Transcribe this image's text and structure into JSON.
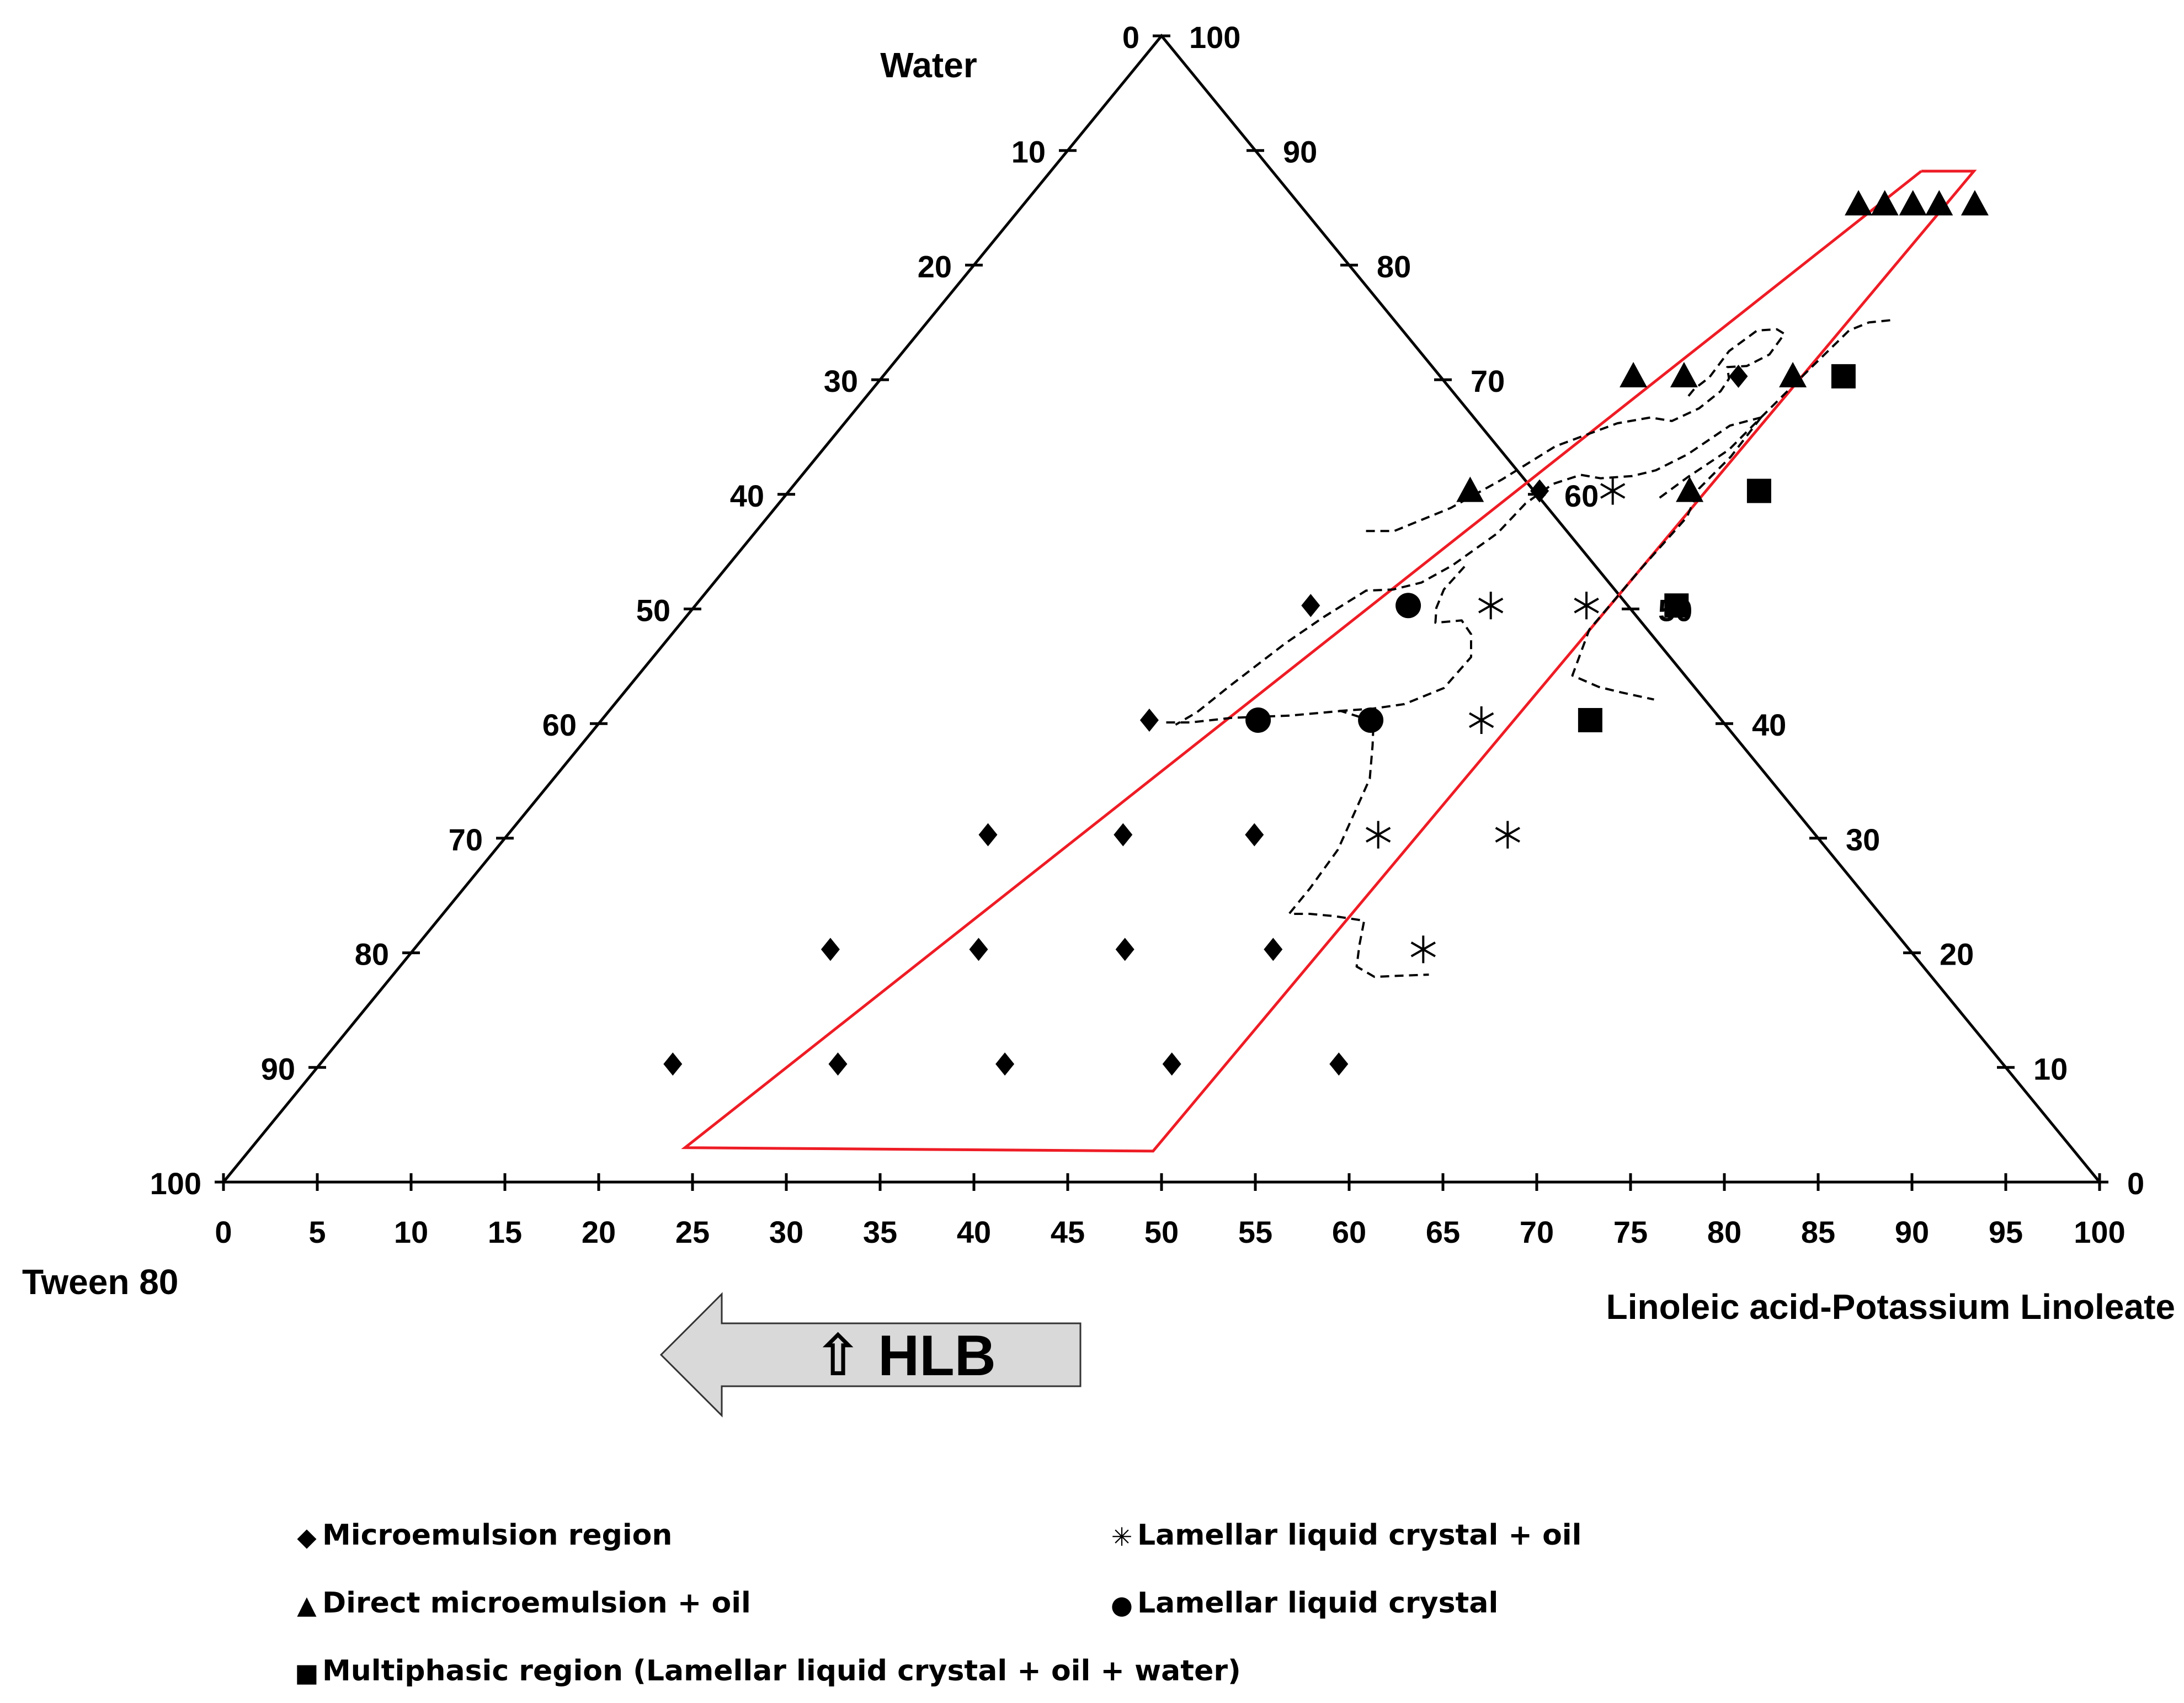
{
  "chart_data": {
    "type": "scatter",
    "subtype": "ternary",
    "apex_labels": {
      "top": "Water",
      "left": "Tween 80",
      "right": "Linoleic acid-Potassium Linoleate"
    },
    "left_axis_ticks": [
      "0",
      "10",
      "20",
      "30",
      "40",
      "50",
      "60",
      "70",
      "80",
      "90",
      "100"
    ],
    "right_axis_ticks": [
      "100",
      "90",
      "80",
      "70",
      "60",
      "50",
      "40",
      "30",
      "20",
      "10",
      "0"
    ],
    "bottom_axis_ticks": [
      "0",
      "5",
      "10",
      "15",
      "20",
      "25",
      "30",
      "35",
      "40",
      "45",
      "50",
      "55",
      "60",
      "65",
      "70",
      "75",
      "80",
      "85",
      "90",
      "95",
      "100"
    ],
    "arrow_label": "⇧  HLB",
    "legend": [
      {
        "key": "microemulsion",
        "symbol": "◆",
        "label": "Microemulsion region"
      },
      {
        "key": "direct",
        "symbol": "▲",
        "label": "Direct microemulsion + oil"
      },
      {
        "key": "multiphasic",
        "symbol": "■",
        "label": "Multiphasic region (Lamellar liquid crystal + oil + water)"
      },
      {
        "key": "lamellar_oil",
        "symbol": "✳",
        "label": "Lamellar liquid crystal + oil"
      },
      {
        "key": "lamellar",
        "symbol": "●",
        "label": "Lamellar liquid crystal"
      }
    ],
    "points": [
      {
        "series": "direct",
        "x": 44.5,
        "water": 14.7
      },
      {
        "series": "direct",
        "x": 45.9,
        "water": 14.7
      },
      {
        "series": "direct",
        "x": 47.4,
        "water": 14.7
      },
      {
        "series": "direct",
        "x": 48.8,
        "water": 14.7
      },
      {
        "series": "direct",
        "x": 50.7,
        "water": 14.7
      },
      {
        "series": "direct",
        "x": 40.0,
        "water": 29.7
      },
      {
        "series": "direct",
        "x": 42.7,
        "water": 29.7
      },
      {
        "series": "microemulsion",
        "x": 45.6,
        "water": 29.7
      },
      {
        "series": "direct",
        "x": 48.5,
        "water": 29.7
      },
      {
        "series": "multiphasic",
        "x": 51.2,
        "water": 29.7
      },
      {
        "series": "direct",
        "x": 36.3,
        "water": 39.7
      },
      {
        "series": "microemulsion",
        "x": 40.0,
        "water": 39.7
      },
      {
        "series": "lamellar_oil",
        "x": 43.9,
        "water": 39.7
      },
      {
        "series": "direct",
        "x": 48.0,
        "water": 39.7
      },
      {
        "series": "multiphasic",
        "x": 51.7,
        "water": 39.7
      },
      {
        "series": "microemulsion",
        "x": 32.8,
        "water": 49.7
      },
      {
        "series": "lamellar",
        "x": 38.0,
        "water": 49.7
      },
      {
        "series": "lamellar_oil",
        "x": 42.4,
        "water": 49.7
      },
      {
        "series": "lamellar_oil",
        "x": 47.5,
        "water": 49.7
      },
      {
        "series": "multiphasic",
        "x": 52.3,
        "water": 49.7
      },
      {
        "series": "microemulsion",
        "x": 29.2,
        "water": 59.7
      },
      {
        "series": "lamellar",
        "x": 35.0,
        "water": 59.7
      },
      {
        "series": "lamellar",
        "x": 41.0,
        "water": 59.7
      },
      {
        "series": "lamellar_oil",
        "x": 46.9,
        "water": 59.7
      },
      {
        "series": "multiphasic",
        "x": 52.7,
        "water": 59.7
      },
      {
        "series": "microemulsion",
        "x": 25.6,
        "water": 69.7
      },
      {
        "series": "microemulsion",
        "x": 32.8,
        "water": 69.7
      },
      {
        "series": "microemulsion",
        "x": 39.8,
        "water": 69.7
      },
      {
        "series": "lamellar_oil",
        "x": 46.4,
        "water": 69.7
      },
      {
        "series": "lamellar_oil",
        "x": 53.3,
        "water": 69.7
      },
      {
        "series": "microemulsion",
        "x": 22.2,
        "water": 79.7
      },
      {
        "series": "microemulsion",
        "x": 30.1,
        "water": 79.7
      },
      {
        "series": "microemulsion",
        "x": 37.9,
        "water": 79.7
      },
      {
        "series": "microemulsion",
        "x": 45.8,
        "water": 79.7
      },
      {
        "series": "lamellar_oil",
        "x": 53.8,
        "water": 79.7
      },
      {
        "series": "microemulsion",
        "x": 18.8,
        "water": 89.7
      },
      {
        "series": "microemulsion",
        "x": 27.6,
        "water": 89.7
      },
      {
        "series": "microemulsion",
        "x": 36.5,
        "water": 89.7
      },
      {
        "series": "microemulsion",
        "x": 45.4,
        "water": 89.7
      },
      {
        "series": "microemulsion",
        "x": 54.3,
        "water": 89.7
      }
    ],
    "red_region": [
      [
        46.4,
        11.8
      ],
      [
        49.2,
        11.8
      ],
      [
        48.2,
        97.3
      ],
      [
        23.1,
        97.0
      ],
      [
        46.4,
        11.8
      ]
    ],
    "dashed_boundaries": [
      [
        [
          32.5,
          43.2
        ],
        [
          34.0,
          43.2
        ],
        [
          35.0,
          42.2
        ],
        [
          36.0,
          41.2
        ],
        [
          37.5,
          38.7
        ],
        [
          38.9,
          35.8
        ],
        [
          41.2,
          33.8
        ],
        [
          42.7,
          33.3
        ],
        [
          44.0,
          33.6
        ],
        [
          44.9,
          32.5
        ],
        [
          45.3,
          31.0
        ],
        [
          45.2,
          29.9
        ],
        [
          44.6,
          28.9
        ],
        [
          45.6,
          28.8
        ],
        [
          46.3,
          27.8
        ],
        [
          46.2,
          26.0
        ],
        [
          45.6,
          25.6
        ],
        [
          44.6,
          25.7
        ],
        [
          44.0,
          27.5
        ],
        [
          44.1,
          29.8
        ],
        [
          43.8,
          30.8
        ],
        [
          43.8,
          31.6
        ]
      ],
      [
        [
          30.2,
          59.9
        ],
        [
          31.5,
          59.9
        ],
        [
          33.5,
          59.5
        ],
        [
          36.5,
          59.3
        ],
        [
          39.0,
          58.9
        ],
        [
          41.2,
          59.8
        ],
        [
          42.2,
          61.9
        ],
        [
          43.5,
          64.8
        ],
        [
          44.0,
          67.0
        ],
        [
          44.9,
          71.0
        ],
        [
          45.1,
          74.4
        ],
        [
          45.1,
          76.6
        ],
        [
          46.2,
          76.6
        ],
        [
          47.6,
          76.8
        ],
        [
          49.4,
          77.2
        ],
        [
          50.2,
          79.3
        ],
        [
          51.0,
          81.2
        ],
        [
          52.4,
          82.1
        ],
        [
          53.7,
          82.0
        ],
        [
          55.2,
          81.9
        ]
      ],
      [
        [
          46.7,
          40.3
        ],
        [
          47.3,
          38.5
        ],
        [
          48.3,
          36.1
        ],
        [
          48.6,
          33.3
        ],
        [
          47.3,
          34.0
        ],
        [
          46.3,
          36.5
        ],
        [
          45.3,
          37.9
        ],
        [
          44.3,
          38.4
        ],
        [
          42.7,
          38.6
        ],
        [
          41.5,
          38.3
        ],
        [
          40.4,
          39.1
        ],
        [
          39.8,
          40.8
        ],
        [
          39.6,
          43.4
        ],
        [
          38.6,
          46.2
        ],
        [
          37.7,
          47.7
        ],
        [
          36.5,
          48.3
        ],
        [
          35.1,
          48.4
        ],
        [
          34.0,
          50.7
        ],
        [
          33.1,
          53.0
        ],
        [
          32.0,
          56.7
        ],
        [
          31.4,
          59.0
        ],
        [
          30.8,
          60.1
        ]
      ],
      [
        [
          38.9,
          58.9
        ],
        [
          40.6,
          58.7
        ],
        [
          42.1,
          58.3
        ],
        [
          43.5,
          56.9
        ],
        [
          43.6,
          54.2
        ],
        [
          42.6,
          52.2
        ],
        [
          41.5,
          51.0
        ],
        [
          40.2,
          51.2
        ],
        [
          39.6,
          49.9
        ],
        [
          39.2,
          48.3
        ],
        [
          39.3,
          46.3
        ]
      ],
      [
        [
          48.6,
          33.3
        ],
        [
          49.1,
          28.9
        ],
        [
          49.5,
          25.7
        ],
        [
          50.2,
          25.0
        ],
        [
          51.3,
          24.8
        ]
      ],
      [
        [
          48.6,
          33.3
        ],
        [
          48.7,
          36.7
        ],
        [
          48.4,
          39.5
        ],
        [
          49.0,
          42.0
        ],
        [
          48.8,
          46.5
        ],
        [
          48.7,
          51.8
        ],
        [
          49.8,
          55.8
        ],
        [
          51.7,
          56.8
        ],
        [
          53.2,
          57.3
        ],
        [
          55.2,
          57.9
        ]
      ]
    ]
  }
}
